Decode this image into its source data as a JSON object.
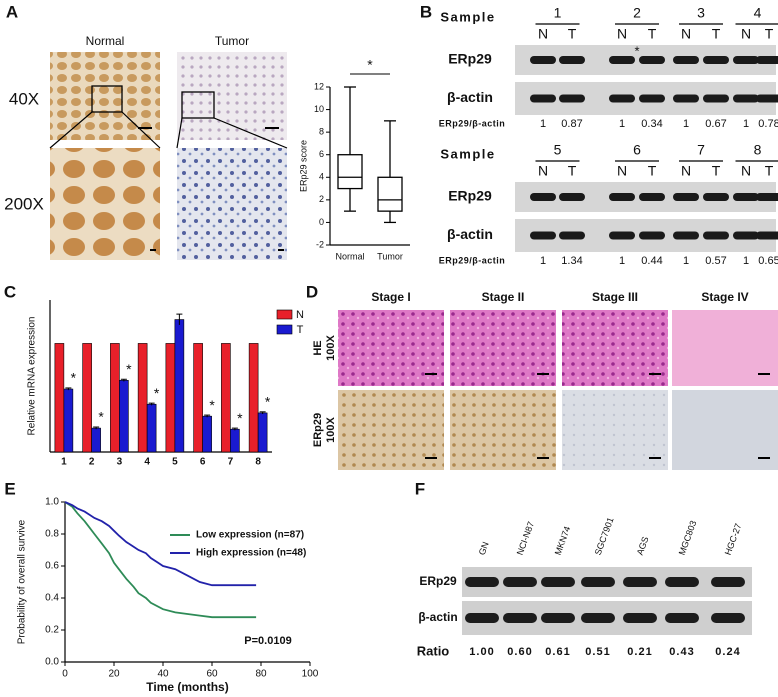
{
  "panel_labels": [
    "A",
    "B",
    "C",
    "D",
    "E",
    "F"
  ],
  "panel_a": {
    "columns": [
      "Normal",
      "Tumor"
    ],
    "rows": [
      "40X",
      "200X"
    ]
  },
  "panel_b": {
    "blots": [
      {
        "sample_header": "Sample",
        "samples": [
          "1",
          "2",
          "3",
          "4"
        ],
        "lane_labels": [
          "N",
          "T",
          "N",
          "T",
          "N",
          "T",
          "N",
          "T"
        ],
        "rows": [
          "ERp29",
          "β-actin"
        ],
        "ratio_label": "ERp29/β-actin",
        "ratios": [
          1,
          0.87,
          1,
          0.34,
          1,
          0.67,
          1,
          0.78
        ],
        "annotation": "*"
      },
      {
        "sample_header": "Sample",
        "samples": [
          "5",
          "6",
          "7",
          "8"
        ],
        "lane_labels": [
          "N",
          "T",
          "N",
          "T",
          "N",
          "T",
          "N",
          "T"
        ],
        "rows": [
          "ERp29",
          "β-actin"
        ],
        "ratio_label": "ERp29/β-actin",
        "ratios": [
          1,
          1.34,
          1,
          0.44,
          1,
          0.57,
          1,
          0.65
        ]
      }
    ]
  },
  "panel_d": {
    "columns": [
      "Stage I",
      "Stage II",
      "Stage III",
      "Stage IV"
    ],
    "rows": [
      [
        "HE",
        "100X"
      ],
      [
        "ERp29",
        "100X"
      ]
    ]
  },
  "panel_f": {
    "lanes": [
      "GN",
      "NCI-N87",
      "MKN74",
      "SGC7901",
      "AGS",
      "MGC803",
      "HGC-27"
    ],
    "rows": [
      "ERp29",
      "β-actin"
    ],
    "ratio_label": "Ratio",
    "ratios": [
      "1.00",
      "0.60",
      "0.61",
      "0.51",
      "0.21",
      "0.43",
      "0.24"
    ]
  },
  "chart_data": [
    {
      "type": "box",
      "ylabel": "ERp29 score",
      "categories": [
        "Normal",
        "Tumor"
      ],
      "boxes": [
        {
          "min": 1,
          "q1": 3,
          "median": 4,
          "q3": 6,
          "max": 12
        },
        {
          "min": 0,
          "q1": 1,
          "median": 2,
          "q3": 4,
          "max": 9
        }
      ],
      "ylim": [
        -2,
        12
      ],
      "yticks": [
        -2,
        0,
        2,
        4,
        6,
        8,
        10,
        12
      ],
      "annotation": "*",
      "color": "#000000"
    },
    {
      "type": "bar",
      "ylabel": "Relative mRNA expression",
      "categories": [
        "1",
        "2",
        "3",
        "4",
        "5",
        "6",
        "7",
        "8"
      ],
      "series": [
        {
          "name": "N",
          "color": "#e8202a",
          "values": [
            1,
            1,
            1,
            1,
            1,
            1,
            1,
            1
          ]
        },
        {
          "name": "T",
          "color": "#1a1ad0",
          "values": [
            0.58,
            0.22,
            0.66,
            0.44,
            1.22,
            0.33,
            0.21,
            0.36
          ],
          "errors": [
            0.01,
            0.01,
            0.01,
            0.01,
            0.05,
            0.01,
            0.01,
            0.01
          ]
        }
      ],
      "significance": [
        "*",
        "*",
        "*",
        "*",
        null,
        "*",
        "*",
        "*"
      ],
      "ylim": [
        0,
        1.4
      ]
    },
    {
      "type": "line",
      "xlabel": "Time (months)",
      "ylabel": "Probability of overall survive",
      "annotation": "P=0.0109",
      "xlim": [
        0,
        100
      ],
      "xticks": [
        0,
        20,
        40,
        60,
        80,
        100
      ],
      "ylim": [
        0,
        1.0
      ],
      "yticks": [
        {
          "value": 0,
          "label": "0.0"
        },
        0.2,
        0.4,
        0.6,
        0.8,
        {
          "value": 1.0,
          "label": "1.0"
        }
      ],
      "series": [
        {
          "name": "Low expression  (n=87)",
          "color": "#2e8b57",
          "x": [
            0,
            3,
            5,
            8,
            10,
            12,
            15,
            18,
            20,
            22,
            25,
            28,
            30,
            33,
            35,
            40,
            45,
            50,
            55,
            60,
            78
          ],
          "values": [
            1,
            0.97,
            0.93,
            0.88,
            0.84,
            0.8,
            0.74,
            0.68,
            0.62,
            0.58,
            0.52,
            0.47,
            0.43,
            0.4,
            0.37,
            0.33,
            0.31,
            0.3,
            0.29,
            0.28,
            0.28
          ]
        },
        {
          "name": "High expression (n=48)",
          "color": "#2222aa",
          "x": [
            0,
            3,
            5,
            8,
            10,
            12,
            15,
            18,
            20,
            22,
            25,
            28,
            30,
            33,
            35,
            38,
            40,
            45,
            50,
            55,
            60,
            78
          ],
          "values": [
            1,
            0.98,
            0.96,
            0.94,
            0.92,
            0.9,
            0.88,
            0.85,
            0.82,
            0.79,
            0.75,
            0.72,
            0.7,
            0.68,
            0.65,
            0.62,
            0.6,
            0.58,
            0.54,
            0.5,
            0.48,
            0.48
          ]
        }
      ]
    }
  ]
}
